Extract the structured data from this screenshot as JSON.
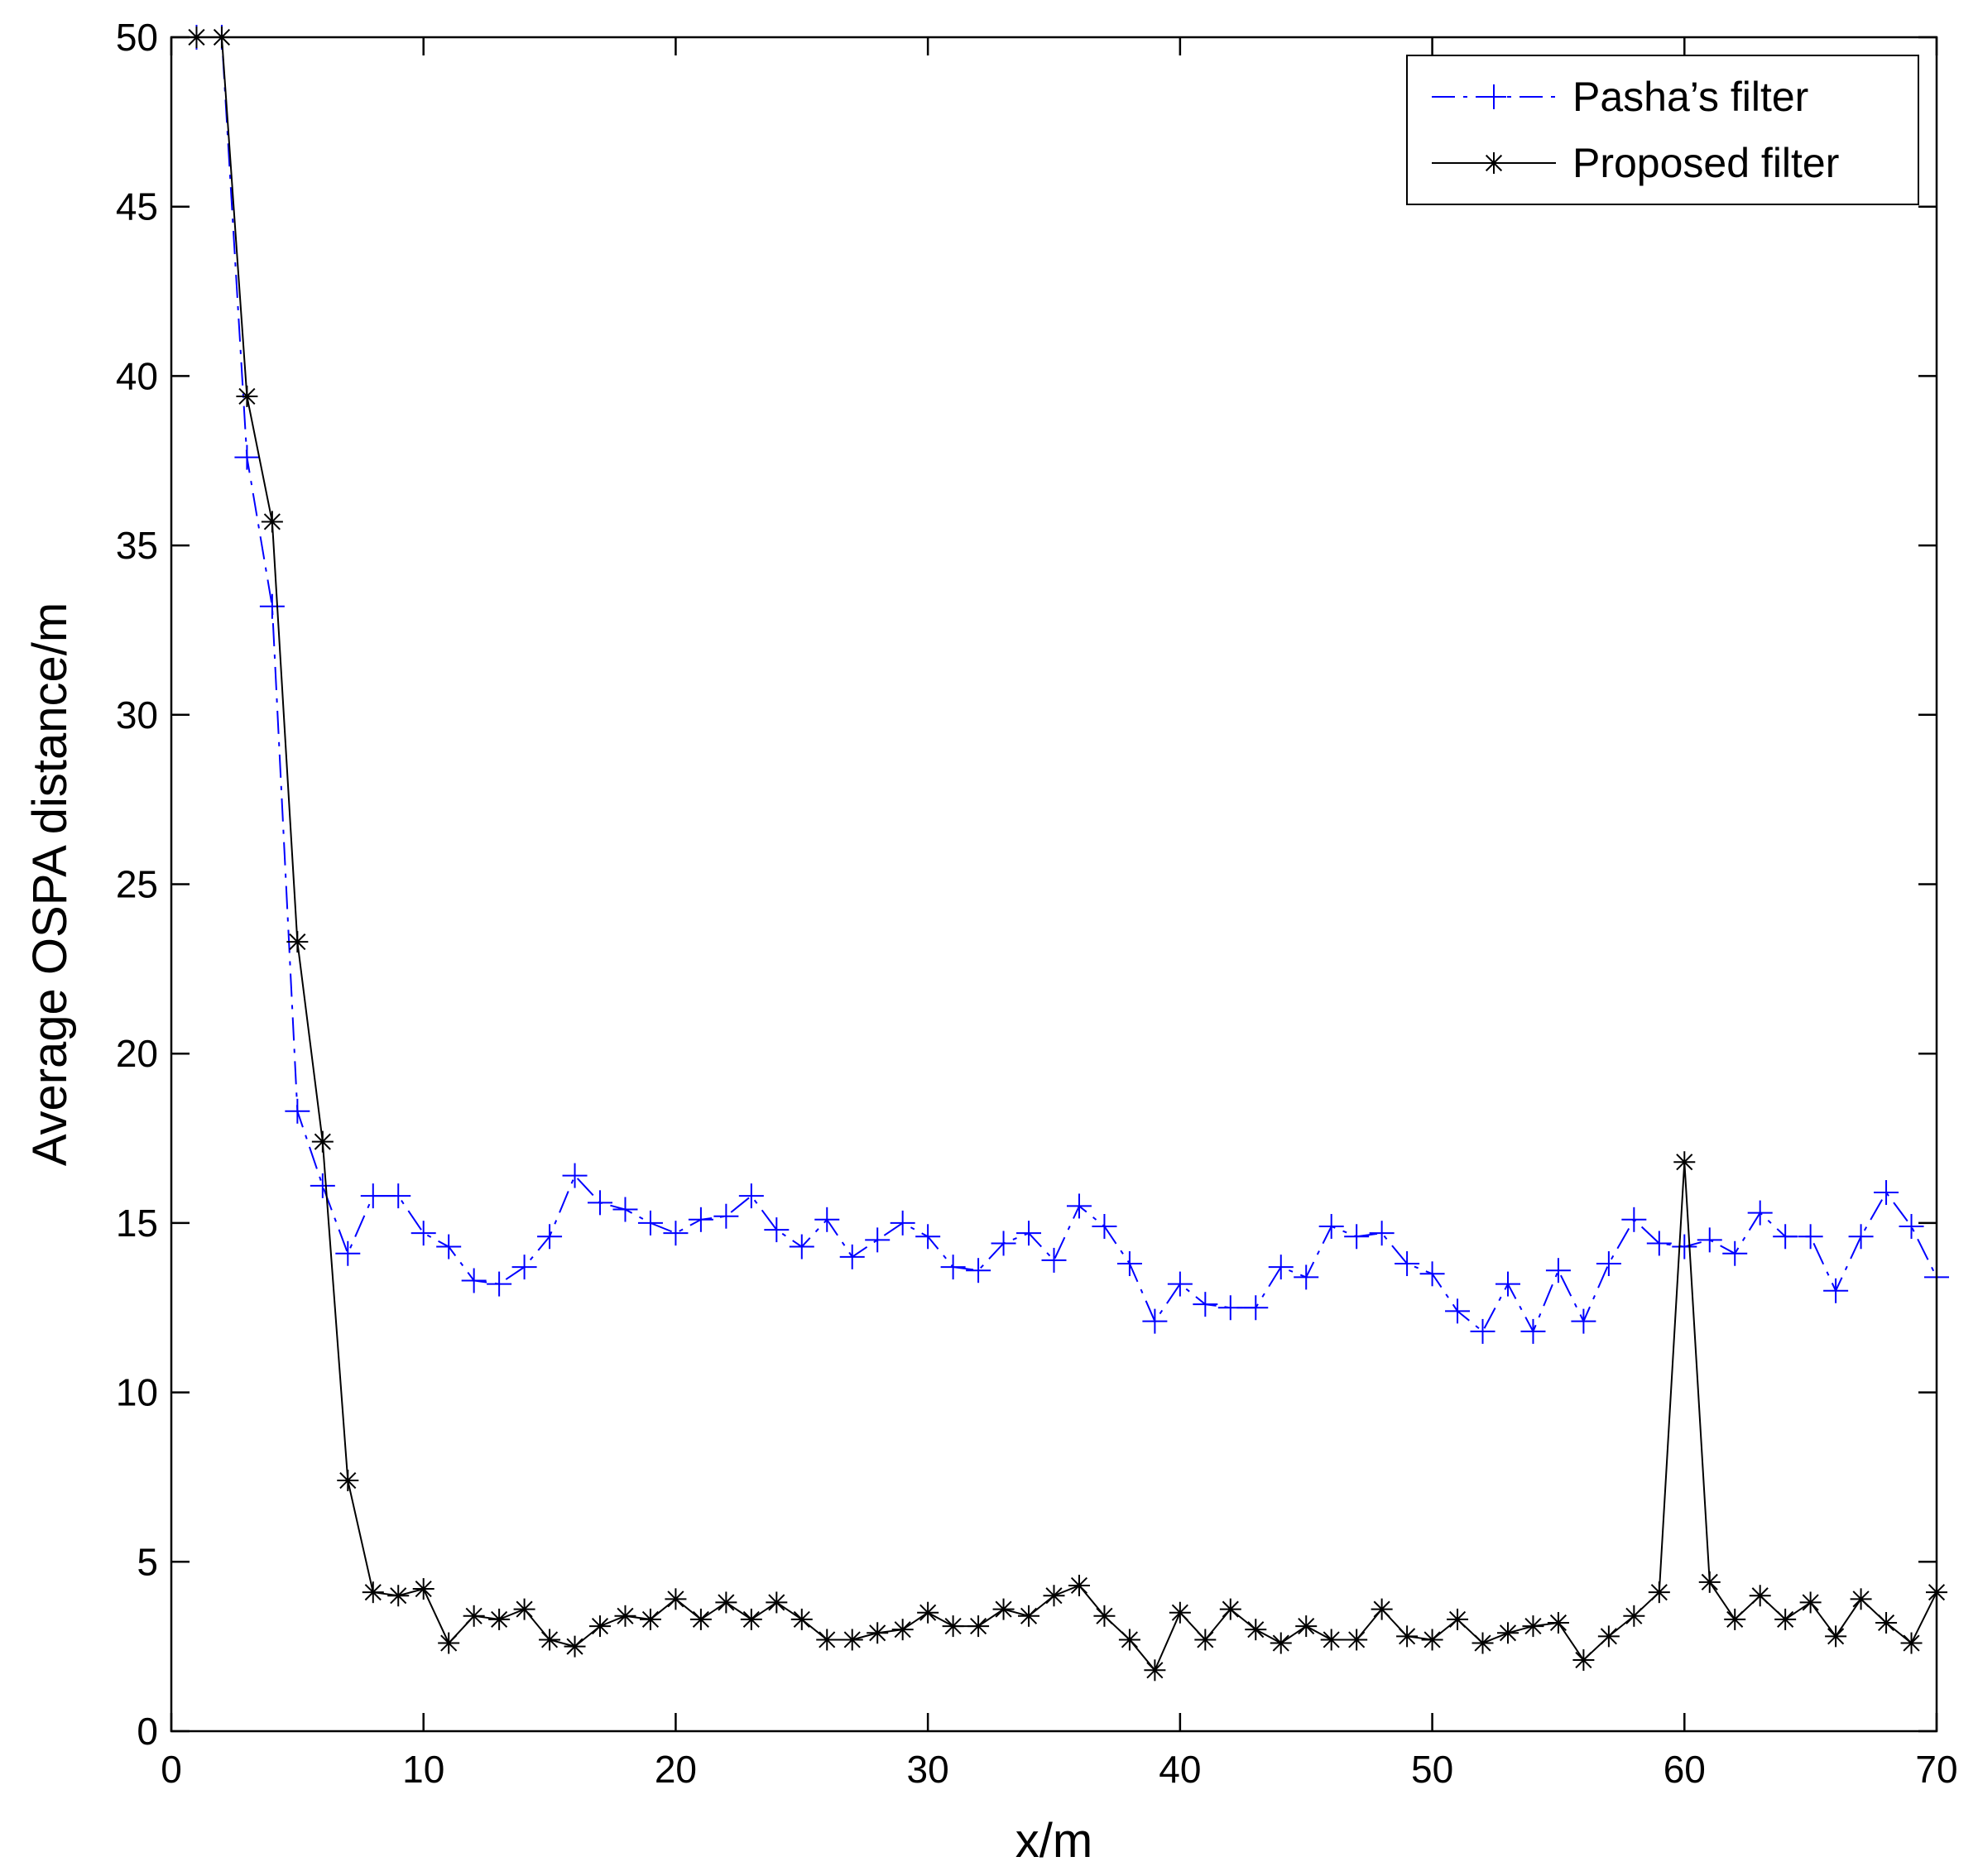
{
  "chart_data": {
    "type": "line",
    "title": "",
    "xlabel": "x/m",
    "ylabel": "Average OSPA distance/m",
    "xlim": [
      0,
      70
    ],
    "ylim": [
      0,
      50
    ],
    "xticks": [
      "0",
      "10",
      "20",
      "30",
      "40",
      "50",
      "60",
      "70"
    ],
    "yticks": [
      "0",
      "5",
      "10",
      "15",
      "20",
      "25",
      "30",
      "35",
      "40",
      "45",
      "50"
    ],
    "grid": false,
    "legend_position": "top-right",
    "x": [
      1,
      2,
      3,
      4,
      5,
      6,
      7,
      8,
      9,
      10,
      11,
      12,
      13,
      14,
      15,
      16,
      17,
      18,
      19,
      20,
      21,
      22,
      23,
      24,
      25,
      26,
      27,
      28,
      29,
      30,
      31,
      32,
      33,
      34,
      35,
      36,
      37,
      38,
      39,
      40,
      41,
      42,
      43,
      44,
      45,
      46,
      47,
      48,
      49,
      50,
      51,
      52,
      53,
      54,
      55,
      56,
      57,
      58,
      59,
      60,
      61,
      62,
      63,
      64,
      65,
      66,
      67,
      68,
      69,
      70
    ],
    "series": [
      {
        "name": "Pasha’s filter",
        "color": "#0000ff",
        "line_style": "dashdot",
        "marker": "plus",
        "values": [
          50,
          50,
          37.6,
          33.2,
          18.3,
          16.1,
          14.1,
          15.8,
          15.8,
          14.7,
          14.3,
          13.3,
          13.2,
          13.7,
          14.6,
          16.4,
          15.6,
          15.4,
          15.0,
          14.7,
          15.1,
          15.2,
          15.8,
          14.8,
          14.3,
          15.1,
          14.0,
          14.5,
          15.0,
          14.6,
          13.7,
          13.6,
          14.4,
          14.7,
          13.9,
          15.5,
          14.9,
          13.8,
          12.1,
          13.2,
          12.6,
          12.5,
          12.5,
          13.7,
          13.4,
          14.9,
          14.6,
          14.7,
          13.8,
          13.5,
          12.4,
          11.8,
          13.2,
          11.8,
          13.6,
          12.1,
          13.8,
          15.1,
          14.4,
          14.3,
          14.5,
          14.1,
          15.3,
          14.6,
          14.6,
          13.0,
          14.6,
          15.9,
          14.9,
          13.4
        ]
      },
      {
        "name": "Proposed filter",
        "color": "#000000",
        "line_style": "solid",
        "marker": "star",
        "values": [
          50,
          50,
          39.4,
          35.7,
          23.3,
          17.4,
          7.4,
          4.1,
          4.0,
          4.2,
          2.6,
          3.4,
          3.3,
          3.6,
          2.7,
          2.5,
          3.1,
          3.4,
          3.3,
          3.9,
          3.3,
          3.8,
          3.3,
          3.8,
          3.3,
          2.7,
          2.7,
          2.9,
          3.0,
          3.5,
          3.1,
          3.1,
          3.6,
          3.4,
          4.0,
          4.3,
          3.4,
          2.7,
          1.8,
          3.5,
          2.7,
          3.6,
          3.0,
          2.6,
          3.1,
          2.7,
          2.7,
          3.6,
          2.8,
          2.7,
          3.3,
          2.6,
          2.9,
          3.1,
          3.2,
          2.1,
          2.8,
          3.4,
          4.1,
          16.8,
          4.4,
          3.3,
          4.0,
          3.3,
          3.8,
          2.8,
          3.9,
          3.2,
          2.6,
          4.1
        ]
      }
    ]
  }
}
